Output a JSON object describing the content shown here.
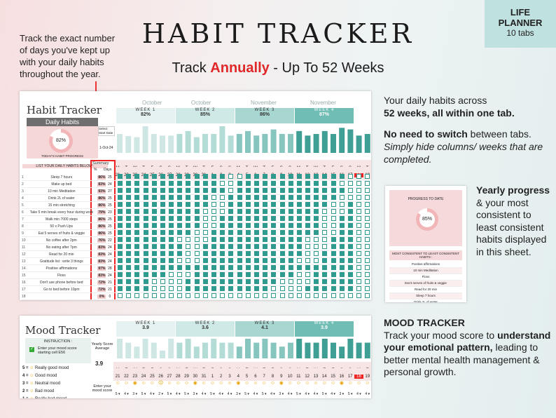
{
  "header": {
    "title": "HABIT TRACKER",
    "subtitle_pre": "Track ",
    "subtitle_hl": "Annually",
    "subtitle_post": " - Up To 52 Weeks"
  },
  "badge": {
    "line1": "LIFE",
    "line2": "PLANNER",
    "line3": "10 tabs"
  },
  "left_note": "Track the exact number of days you've kept up with your daily habits throughout the year.",
  "right": {
    "p1_a": "Your daily habits across",
    "p1_b": "52 weeks, all within one tab.",
    "p2_bold": "No need to switch",
    "p2_a": " between tabs. ",
    "p2_italic": "Simply hide columns/ weeks that are completed.",
    "yearly_bold": "Yearly progress",
    "yearly_rest": " & your most consistent to least consistent habits displayed in this sheet.",
    "mood_title": "MOOD TRACKER",
    "mood_a": "Track your mood score to ",
    "mood_bold": "understand your emotional pattern,",
    "mood_b": " leading to better mental health management & personal growth."
  },
  "habit_sheet": {
    "title": "Habit Tracker",
    "daily_habits": "Daily Habits",
    "progress_pct": "82%",
    "progress_value": 0.82,
    "progress_label": "TODAY'S HABIT PROGRESS",
    "select_start": "Select Start Date",
    "start_date": "1-Oct-24",
    "list_header": "LIST YOUR DAILY HABITS BELOW :",
    "summary": "Summary",
    "col_pct": "%",
    "col_days": "Days",
    "months": [
      "October",
      "October",
      "November",
      "November"
    ],
    "weeks": [
      {
        "label": "WEEK 1",
        "pct": "82%"
      },
      {
        "label": "WEEK 2",
        "pct": "85%"
      },
      {
        "label": "WEEK 3",
        "pct": "86%"
      },
      {
        "label": "WEEK 4",
        "pct": "87%"
      }
    ],
    "day_letters": [
      "M",
      "T",
      "W",
      "T",
      "F",
      "S",
      "S",
      "M",
      "T",
      "W",
      "T",
      "F",
      "S",
      "S",
      "M",
      "T",
      "W",
      "T",
      "F",
      "S",
      "S",
      "M",
      "T",
      "W",
      "T",
      "F",
      "S",
      "S",
      "M",
      "T"
    ],
    "day_numbers": [
      "21",
      "22",
      "23",
      "24",
      "25",
      "26",
      "27",
      "28",
      "29",
      "30",
      "31",
      "1",
      "2",
      "3",
      "4",
      "5",
      "6",
      "7",
      "8",
      "9",
      "10",
      "11",
      "12",
      "13",
      "14",
      "15",
      "16",
      "17",
      "18",
      "19"
    ],
    "daily_pcts": [
      "71%",
      "63%",
      "59%",
      "100%",
      "71%",
      "65%",
      "65%",
      "71%",
      "82%",
      "59%",
      "71%",
      "71%",
      "100%",
      "65%",
      "71%",
      "82%",
      "65%",
      "71%",
      "88%",
      "71%",
      "71%",
      "82%",
      "65%",
      "71%",
      "82%",
      "71%",
      "94%",
      "88%",
      "65%",
      "71%"
    ],
    "habits": [
      {
        "n": "1",
        "name": "Sleep 7 hours",
        "pct": "86%",
        "days": "25"
      },
      {
        "n": "2",
        "name": "Make up bed",
        "pct": "83%",
        "days": "24"
      },
      {
        "n": "3",
        "name": "10 min Meditation",
        "pct": "93%",
        "days": "27"
      },
      {
        "n": "4",
        "name": "Drink 2L of water",
        "pct": "86%",
        "days": "25"
      },
      {
        "n": "5",
        "name": "15 min stretching",
        "pct": "86%",
        "days": "25"
      },
      {
        "n": "6",
        "name": "Take 5 min break every hour during work",
        "pct": "79%",
        "days": "23"
      },
      {
        "n": "7",
        "name": "Walk min 7000 steps",
        "pct": "86%",
        "days": "25"
      },
      {
        "n": "8",
        "name": "50 x Push Ups",
        "pct": "86%",
        "days": "25"
      },
      {
        "n": "9",
        "name": "Eat 5 serves of fruits & veggie",
        "pct": "86%",
        "days": "25"
      },
      {
        "n": "10",
        "name": "No coffee after 2pm",
        "pct": "76%",
        "days": "22"
      },
      {
        "n": "11",
        "name": "No eating after 7pm",
        "pct": "83%",
        "days": "24"
      },
      {
        "n": "12",
        "name": "Read for 20 min",
        "pct": "83%",
        "days": "24"
      },
      {
        "n": "13",
        "name": "Gratitude list : write 3 things",
        "pct": "83%",
        "days": "24"
      },
      {
        "n": "14",
        "name": "Positive affirmations",
        "pct": "97%",
        "days": "28"
      },
      {
        "n": "15",
        "name": "Floss",
        "pct": "83%",
        "days": "24"
      },
      {
        "n": "16",
        "name": "Don't use phone before bed",
        "pct": "72%",
        "days": "21"
      },
      {
        "n": "17",
        "name": "Go to bed before 10pm",
        "pct": "72%",
        "days": "21"
      },
      {
        "n": "18",
        "name": "",
        "pct": "0%",
        "days": "0"
      },
      {
        "n": "19",
        "name": "",
        "pct": "",
        "days": ""
      }
    ]
  },
  "progress_card": {
    "title": "PROGRESS TO DATE",
    "pct": "85%",
    "value": 0.85,
    "list_title": "MOST CONSISTENT TO LEAST CONSISTENT HABITS :",
    "items": [
      "Positive affirmations",
      "10 min Meditation",
      "Floss",
      "Eat 5 serves of fruits & veggie",
      "Read for 20 min",
      "Sleep 7 hours",
      "Drink 2L of water",
      "15 min stretching"
    ]
  },
  "mood_sheet": {
    "title": "Mood Tracker",
    "instruction": "INSTRUCTION :",
    "instruction_text": "Enter your mood score starting cell E56",
    "avg_label": "Yearly Score Average",
    "avg_value": "3.9",
    "weeks": [
      {
        "label": "WEEK 1",
        "val": "3.9"
      },
      {
        "label": "WEEK 2",
        "val": "3.6"
      },
      {
        "label": "WEEK 3",
        "val": "4.1"
      },
      {
        "label": "WEEK 4",
        "val": "3.9"
      }
    ],
    "legend": [
      {
        "k": "5 =",
        "t": "Really good mood"
      },
      {
        "k": "4 =",
        "t": "Good mood"
      },
      {
        "k": "3 =",
        "t": "Neutral mood"
      },
      {
        "k": "2 =",
        "t": "Bad mood"
      },
      {
        "k": "1 =",
        "t": "Really bad mood"
      }
    ],
    "enter_label": "Enter your mood score",
    "scores": [
      "5",
      "4",
      "3",
      "5",
      "4",
      "2",
      "5",
      "4",
      "5",
      "3",
      "4",
      "5",
      "4",
      "4",
      "3",
      "5",
      "4",
      "5",
      "4",
      "3",
      "4",
      "5",
      "4",
      "4",
      "5",
      "4",
      "3",
      "5",
      "4",
      "4"
    ]
  },
  "colors": {
    "accent": "#2f9b8e",
    "red": "#e22222",
    "pink": "#f2c9c9"
  }
}
